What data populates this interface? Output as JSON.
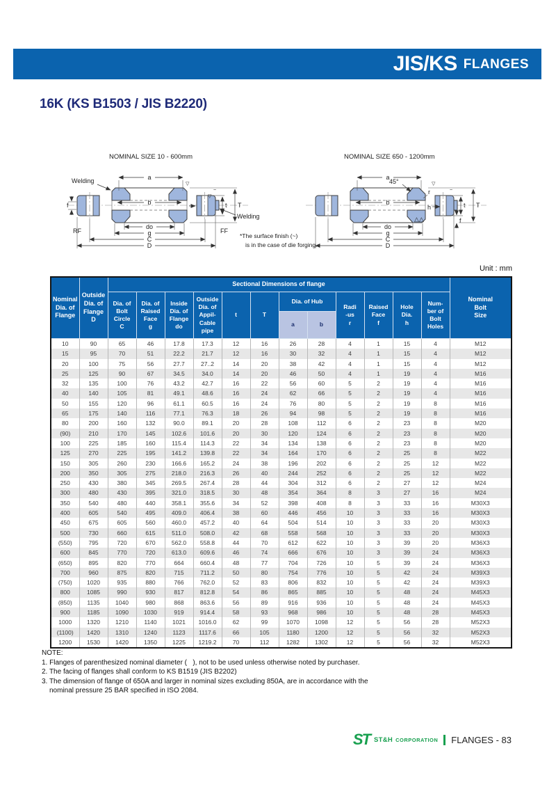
{
  "header": {
    "title_main": "JIS/KS",
    "title_sub": "FLANGES",
    "section_title": "16K (KS B1503 / JIS B2220)"
  },
  "diagrams": {
    "left": {
      "caption": "NOMINAL SIZE 10 - 600mm",
      "labels": {
        "welding_top": "Welding",
        "welding_right": "Welding",
        "a": "a",
        "b": "b",
        "do": "do",
        "g": "g",
        "c": "C",
        "d": "D",
        "t_small": "t",
        "t_big": "T",
        "f": "f",
        "rf": "RF",
        "ff": "FF",
        "finish1": "▽",
        "finish2": "▽",
        "tilde": "~"
      }
    },
    "right": {
      "caption": "NOMINAL SIZE 650 - 1200mm",
      "labels": {
        "a": "a",
        "b": "b",
        "do": "do",
        "g": "g",
        "c": "C",
        "d": "D",
        "t_small": "t",
        "t_big": "T",
        "f": "f",
        "h": "h",
        "r": "r",
        "angle": "45°",
        "finish1": "▽",
        "tilde": "~",
        "tri": "△△"
      }
    },
    "surface_note_line1": "*The surface finish (~)",
    "surface_note_line2": "is in the case of die forging."
  },
  "table": {
    "unit_label": "Unit : mm",
    "group_header": "Sectional Dimensions of flange",
    "col_headers": [
      "Nominal\nDia. of\nFlange",
      "Outside\nDia. of\nFlange\nD",
      "Dia. of\nBolt\nCircle\nC",
      "Dia. of\nRaised\nFace\ng",
      "Inside\nDia. of\nFlange\ndo",
      "Outside\nDia. of\nAppil-\nCable\npipe",
      "t",
      "T",
      "Dia. of Hub",
      "Radi\n-us\nr",
      "Raised\nFace\nf",
      "Hole\nDia.\nh",
      "Num-\nber of\nBolt\nHoles",
      "Nominal\nBolt\nSize"
    ],
    "hub_sub": [
      "a",
      "b"
    ],
    "rows": [
      [
        "10",
        "90",
        "65",
        "46",
        "17.8",
        "17.3",
        "12",
        "16",
        "26",
        "28",
        "4",
        "1",
        "15",
        "4",
        "M12"
      ],
      [
        "15",
        "95",
        "70",
        "51",
        "22.2",
        "21.7",
        "12",
        "16",
        "30",
        "32",
        "4",
        "1",
        "15",
        "4",
        "M12"
      ],
      [
        "20",
        "100",
        "75",
        "56",
        "27.7",
        "27..2",
        "14",
        "20",
        "38",
        "42",
        "4",
        "1",
        "15",
        "4",
        "M12"
      ],
      [
        "25",
        "125",
        "90",
        "67",
        "34.5",
        "34.0",
        "14",
        "20",
        "46",
        "50",
        "4",
        "1",
        "19",
        "4",
        "M16"
      ],
      [
        "32",
        "135",
        "100",
        "76",
        "43.2",
        "42.7",
        "16",
        "22",
        "56",
        "60",
        "5",
        "2",
        "19",
        "4",
        "M16"
      ],
      [
        "40",
        "140",
        "105",
        "81",
        "49.1",
        "48.6",
        "16",
        "24",
        "62",
        "66",
        "5",
        "2",
        "19",
        "4",
        "M16"
      ],
      [
        "50",
        "155",
        "120",
        "96",
        "61.1",
        "60.5",
        "16",
        "24",
        "76",
        "80",
        "5",
        "2",
        "19",
        "8",
        "M16"
      ],
      [
        "65",
        "175",
        "140",
        "116",
        "77.1",
        "76.3",
        "18",
        "26",
        "94",
        "98",
        "5",
        "2",
        "19",
        "8",
        "M16"
      ],
      [
        "80",
        "200",
        "160",
        "132",
        "90.0",
        "89.1",
        "20",
        "28",
        "108",
        "112",
        "6",
        "2",
        "23",
        "8",
        "M20"
      ],
      [
        "(90)",
        "210",
        "170",
        "145",
        "102.6",
        "101.6",
        "20",
        "30",
        "120",
        "124",
        "6",
        "2",
        "23",
        "8",
        "M20"
      ],
      [
        "100",
        "225",
        "185",
        "160",
        "115.4",
        "114.3",
        "22",
        "34",
        "134",
        "138",
        "6",
        "2",
        "23",
        "8",
        "M20"
      ],
      [
        "125",
        "270",
        "225",
        "195",
        "141.2",
        "139.8",
        "22",
        "34",
        "164",
        "170",
        "6",
        "2",
        "25",
        "8",
        "M22"
      ],
      [
        "150",
        "305",
        "260",
        "230",
        "166.6",
        "165.2",
        "24",
        "38",
        "196",
        "202",
        "6",
        "2",
        "25",
        "12",
        "M22"
      ],
      [
        "200",
        "350",
        "305",
        "275",
        "218.0",
        "216.3",
        "26",
        "40",
        "244",
        "252",
        "6",
        "2",
        "25",
        "12",
        "M22"
      ],
      [
        "250",
        "430",
        "380",
        "345",
        "269.5",
        "267.4",
        "28",
        "44",
        "304",
        "312",
        "6",
        "2",
        "27",
        "12",
        "M24"
      ],
      [
        "300",
        "480",
        "430",
        "395",
        "321.0",
        "318.5",
        "30",
        "48",
        "354",
        "364",
        "8",
        "3",
        "27",
        "16",
        "M24"
      ],
      [
        "350",
        "540",
        "480",
        "440",
        "358.1",
        "355.6",
        "34",
        "52",
        "398",
        "408",
        "8",
        "3",
        "33",
        "16",
        "M30X3"
      ],
      [
        "400",
        "605",
        "540",
        "495",
        "409.0",
        "406.4",
        "38",
        "60",
        "446",
        "456",
        "10",
        "3",
        "33",
        "16",
        "M30X3"
      ],
      [
        "450",
        "675",
        "605",
        "560",
        "460.0",
        "457.2",
        "40",
        "64",
        "504",
        "514",
        "10",
        "3",
        "33",
        "20",
        "M30X3"
      ],
      [
        "500",
        "730",
        "660",
        "615",
        "511.0",
        "508.0",
        "42",
        "68",
        "558",
        "568",
        "10",
        "3",
        "33",
        "20",
        "M30X3"
      ],
      [
        "(550)",
        "795",
        "720",
        "670",
        "562.0",
        "558.8",
        "44",
        "70",
        "612",
        "622",
        "10",
        "3",
        "39",
        "20",
        "M36X3"
      ],
      [
        "600",
        "845",
        "770",
        "720",
        "613.0",
        "609.6",
        "46",
        "74",
        "666",
        "676",
        "10",
        "3",
        "39",
        "24",
        "M36X3"
      ],
      [
        "(650)",
        "895",
        "820",
        "770",
        "664",
        "660.4",
        "48",
        "77",
        "704",
        "726",
        "10",
        "5",
        "39",
        "24",
        "M36X3"
      ],
      [
        "700",
        "960",
        "875",
        "820",
        "715",
        "711.2",
        "50",
        "80",
        "754",
        "776",
        "10",
        "5",
        "42",
        "24",
        "M39X3"
      ],
      [
        "(750)",
        "1020",
        "935",
        "880",
        "766",
        "762.0",
        "52",
        "83",
        "806",
        "832",
        "10",
        "5",
        "42",
        "24",
        "M39X3"
      ],
      [
        "800",
        "1085",
        "990",
        "930",
        "817",
        "812.8",
        "54",
        "86",
        "865",
        "885",
        "10",
        "5",
        "48",
        "24",
        "M45X3"
      ],
      [
        "(850)",
        "1135",
        "1040",
        "980",
        "868",
        "863.6",
        "56",
        "89",
        "916",
        "936",
        "10",
        "5",
        "48",
        "24",
        "M45X3"
      ],
      [
        "900",
        "1185",
        "1090",
        "1030",
        "919",
        "914.4",
        "58",
        "93",
        "968",
        "986",
        "10",
        "5",
        "48",
        "28",
        "M45X3"
      ],
      [
        "1000",
        "1320",
        "1210",
        "1140",
        "1021",
        "1016.0",
        "62",
        "99",
        "1070",
        "1098",
        "12",
        "5",
        "56",
        "28",
        "M52X3"
      ],
      [
        "(1100)",
        "1420",
        "1310",
        "1240",
        "1123",
        "1117.6",
        "66",
        "105",
        "1180",
        "1200",
        "12",
        "5",
        "56",
        "32",
        "M52X3"
      ],
      [
        "1200",
        "1530",
        "1420",
        "1350",
        "1225",
        "1219.2",
        "70",
        "112",
        "1282",
        "1302",
        "12",
        "5",
        "56",
        "32",
        "M52X3"
      ]
    ]
  },
  "notes": {
    "title": "NOTE:",
    "items": [
      "1. Flanges of parenthesized nominal diameter (   ), not to be used unless otherwise noted by purchaser.",
      "2. The facing of flanges shall conform to KS B1519 (JIS B2202)",
      "3. The dimension of flange of 650A and larger in nominal sizes excluding 850A, are in accordance with the",
      "nominal pressure 25 BAR specified in ISO 2084."
    ]
  },
  "footer": {
    "logo": "ST",
    "company_name": "ST&H",
    "company_suffix": "CORPORATION",
    "page_label": "FLANGES - 83"
  }
}
